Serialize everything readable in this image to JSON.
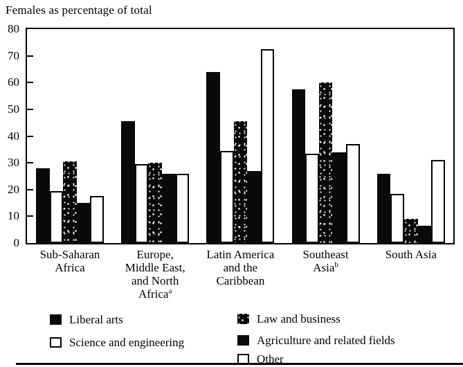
{
  "title": "Females as percentage of total",
  "colors": {
    "ink": "#000000",
    "paper": "#ffffff"
  },
  "chart_data": {
    "type": "bar",
    "title": "Females as percentage of total",
    "xlabel": "",
    "ylabel": "Females as percentage of total",
    "ylim": [
      0,
      80
    ],
    "y_ticks": [
      0,
      10,
      20,
      30,
      40,
      50,
      60,
      70,
      80
    ],
    "grid": false,
    "legend_position": "bottom",
    "categories": [
      "Sub-Saharan Africa",
      "Europe, Middle East, and North Africa",
      "Latin America and the Caribbean",
      "Southeast Asia",
      "South Asia"
    ],
    "x_labels": [
      {
        "text": "Sub-Saharan\nAfrica",
        "sup": ""
      },
      {
        "text": "Europe,\nMiddle East,\nand North\nAfrica",
        "sup": "a"
      },
      {
        "text": "Latin America\nand the\nCaribbean",
        "sup": ""
      },
      {
        "text": "Southeast\nAsia",
        "sup": "b"
      },
      {
        "text": "South Asia",
        "sup": ""
      }
    ],
    "series": [
      {
        "name": "Liberal arts",
        "style": "solid-black",
        "values": [
          28,
          45.5,
          64,
          57.5,
          26
        ]
      },
      {
        "name": "Science and engineering",
        "style": "white",
        "values": [
          19.5,
          29.5,
          34.5,
          33.5,
          18.5
        ]
      },
      {
        "name": "Law and business",
        "style": "speckled-black",
        "values": [
          30.5,
          30,
          45.5,
          60,
          9
        ]
      },
      {
        "name": "Agriculture and related fields",
        "style": "solid-black",
        "values": [
          15,
          26,
          27,
          34,
          6.5
        ]
      },
      {
        "name": "Other",
        "style": "white",
        "values": [
          17.5,
          26,
          72.5,
          37,
          31
        ]
      }
    ]
  }
}
